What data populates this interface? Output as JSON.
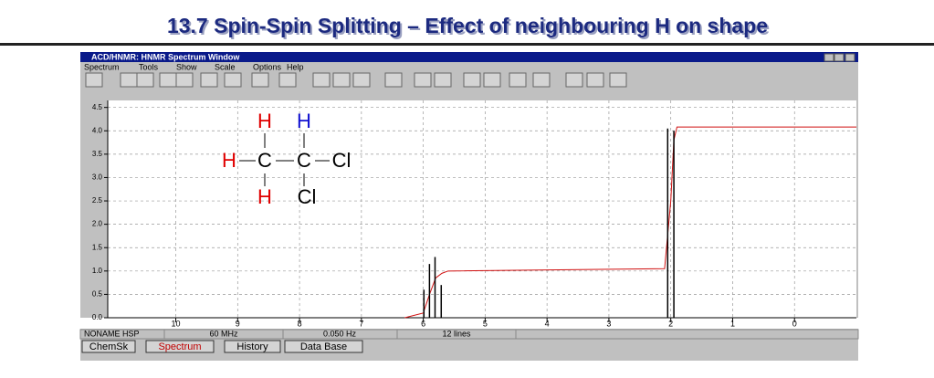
{
  "slide_title": "13.7 Spin-Spin Splitting – Effect of neighbouring H on shape",
  "window": {
    "title": "ACD/HNMR: HNMR Spectrum Window",
    "menu": [
      "Spectrum",
      "Tools",
      "Show",
      "Scale",
      "Options",
      "Help"
    ],
    "status": [
      "NONAME HSP",
      "60 MHz",
      "0.050 Hz",
      "12 lines"
    ],
    "tabs": [
      "ChemSk",
      "Spectrum",
      "History",
      "Data Base"
    ]
  },
  "molecule": {
    "atoms": [
      "H",
      "H",
      "H",
      "C",
      "C",
      "Cl",
      "H",
      "Cl"
    ]
  },
  "chart_data": {
    "type": "spectrum",
    "xlim": [
      11.1,
      -1.0
    ],
    "ylim": [
      0,
      4.65
    ],
    "xticks": [
      10,
      9,
      8,
      7,
      6,
      5,
      4,
      3,
      2,
      1,
      0
    ],
    "yticks": [
      {
        "value": 0,
        "label": "0.0"
      },
      0.5,
      {
        "value": 1,
        "label": "1.0"
      },
      1.5,
      {
        "value": 2,
        "label": "2.0"
      },
      2.5,
      {
        "value": 3,
        "label": "3.0"
      },
      3.5,
      {
        "value": 4,
        "label": "4.0"
      },
      4.5
    ],
    "grid": true,
    "peaks": {
      "color": "#000000",
      "x": [
        5.99,
        5.9,
        5.81,
        5.71,
        2.05,
        1.95
      ],
      "values": [
        0.6,
        1.15,
        1.3,
        0.7,
        4.05,
        4.0
      ]
    },
    "integral": {
      "color": "#d01010",
      "x": [
        6.3,
        6.0,
        5.9,
        5.8,
        5.7,
        5.6,
        2.1,
        2.0,
        1.95,
        1.9,
        -1.0
      ],
      "values": [
        0,
        0.1,
        0.5,
        0.85,
        0.95,
        1.0,
        1.05,
        2.5,
        3.8,
        4.08,
        4.08
      ]
    }
  }
}
